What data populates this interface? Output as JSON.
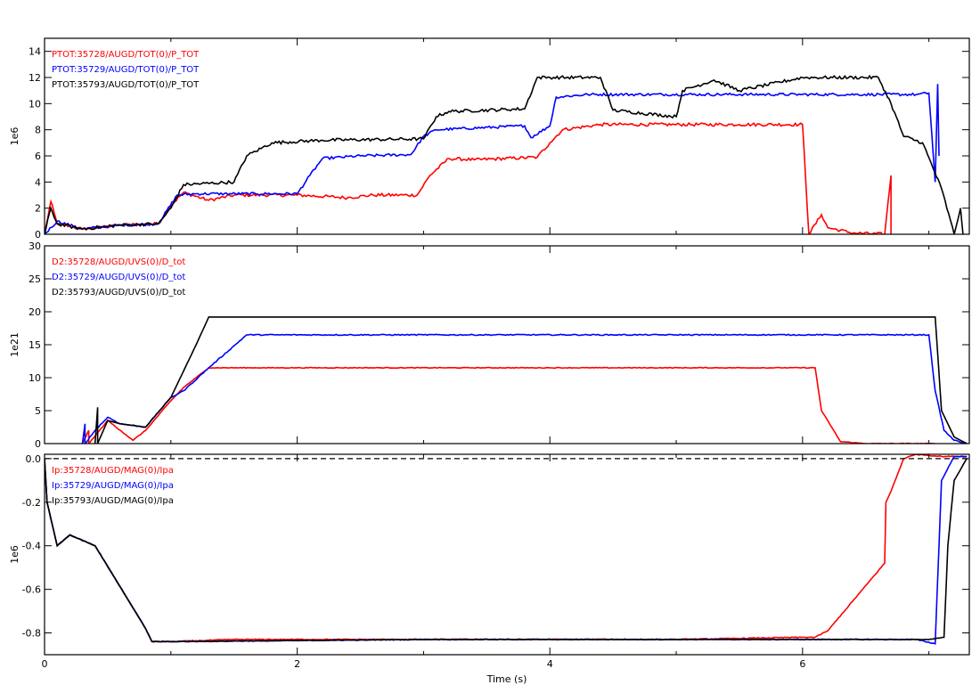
{
  "chart_data": [
    {
      "type": "line",
      "ylabel": "1e6",
      "xlim": [
        0,
        7.32
      ],
      "ylim": [
        0,
        15
      ],
      "yticks": [
        0,
        2,
        4,
        6,
        8,
        10,
        12,
        14
      ],
      "legend_position": "top-left",
      "series": [
        {
          "name": "PTOT:35728/AUGD/TOT(0)/P_TOT",
          "color": "#ff0000",
          "noise": 0.12,
          "points": [
            [
              0.0,
              0.0
            ],
            [
              0.05,
              2.5
            ],
            [
              0.1,
              0.8
            ],
            [
              0.3,
              0.4
            ],
            [
              0.6,
              0.7
            ],
            [
              0.9,
              0.8
            ],
            [
              1.0,
              2.2
            ],
            [
              1.1,
              3.2
            ],
            [
              1.3,
              2.6
            ],
            [
              1.5,
              3.0
            ],
            [
              2.0,
              3.0
            ],
            [
              2.4,
              2.8
            ],
            [
              2.6,
              3.0
            ],
            [
              2.95,
              3.0
            ],
            [
              3.05,
              4.5
            ],
            [
              3.2,
              5.8
            ],
            [
              3.4,
              5.7
            ],
            [
              3.9,
              5.9
            ],
            [
              4.0,
              7.0
            ],
            [
              4.1,
              8.0
            ],
            [
              4.4,
              8.4
            ],
            [
              5.0,
              8.4
            ],
            [
              5.5,
              8.4
            ],
            [
              6.0,
              8.4
            ],
            [
              6.05,
              0.0
            ],
            [
              6.15,
              1.5
            ],
            [
              6.2,
              0.5
            ],
            [
              6.4,
              0.1
            ],
            [
              6.65,
              0.0
            ],
            [
              6.7,
              4.5
            ],
            [
              6.7,
              0.0
            ]
          ]
        },
        {
          "name": "PTOT:35729/AUGD/TOT(0)/P_TOT",
          "color": "#0000ff",
          "noise": 0.1,
          "points": [
            [
              0.0,
              0.0
            ],
            [
              0.1,
              1.0
            ],
            [
              0.3,
              0.4
            ],
            [
              0.6,
              0.7
            ],
            [
              0.9,
              0.8
            ],
            [
              1.05,
              3.0
            ],
            [
              1.2,
              3.1
            ],
            [
              2.0,
              3.1
            ],
            [
              2.1,
              4.5
            ],
            [
              2.2,
              5.8
            ],
            [
              2.5,
              6.0
            ],
            [
              2.9,
              6.1
            ],
            [
              3.0,
              7.5
            ],
            [
              3.1,
              8.0
            ],
            [
              3.8,
              8.3
            ],
            [
              3.85,
              7.4
            ],
            [
              4.0,
              8.3
            ],
            [
              4.05,
              10.5
            ],
            [
              4.3,
              10.7
            ],
            [
              6.0,
              10.7
            ],
            [
              6.9,
              10.7
            ],
            [
              7.0,
              10.8
            ],
            [
              7.05,
              4.0
            ],
            [
              7.07,
              11.5
            ],
            [
              7.08,
              6.0
            ]
          ]
        },
        {
          "name": "PTOT:35793/AUGD/TOT(0)/P_TOT",
          "color": "#000000",
          "noise": 0.12,
          "points": [
            [
              0.0,
              0.0
            ],
            [
              0.05,
              2.0
            ],
            [
              0.1,
              0.8
            ],
            [
              0.3,
              0.4
            ],
            [
              0.6,
              0.7
            ],
            [
              0.9,
              0.8
            ],
            [
              1.0,
              2.0
            ],
            [
              1.1,
              3.8
            ],
            [
              1.5,
              4.0
            ],
            [
              1.6,
              6.0
            ],
            [
              1.8,
              7.0
            ],
            [
              2.2,
              7.2
            ],
            [
              3.0,
              7.3
            ],
            [
              3.1,
              9.0
            ],
            [
              3.2,
              9.4
            ],
            [
              3.8,
              9.6
            ],
            [
              3.9,
              12.0
            ],
            [
              4.0,
              12.0
            ],
            [
              4.4,
              12.0
            ],
            [
              4.5,
              9.5
            ],
            [
              5.0,
              9.0
            ],
            [
              5.05,
              11.0
            ],
            [
              5.3,
              11.8
            ],
            [
              5.5,
              11.0
            ],
            [
              6.0,
              12.0
            ],
            [
              6.6,
              12.0
            ],
            [
              6.7,
              10.0
            ],
            [
              6.8,
              7.5
            ],
            [
              6.95,
              7.0
            ],
            [
              7.1,
              3.5
            ],
            [
              7.2,
              0.0
            ],
            [
              7.25,
              2.0
            ],
            [
              7.27,
              0.0
            ]
          ]
        }
      ]
    },
    {
      "type": "line",
      "ylabel": "1e21",
      "xlim": [
        0,
        7.32
      ],
      "ylim": [
        0,
        30
      ],
      "yticks": [
        0,
        5,
        10,
        15,
        20,
        25,
        30
      ],
      "legend_position": "top-left",
      "series": [
        {
          "name": "D2:35728/AUGD/UVS(0)/D_tot",
          "color": "#ff0000",
          "noise": 0.05,
          "points": [
            [
              0.3,
              0.0
            ],
            [
              0.35,
              2.0
            ],
            [
              0.35,
              0.0
            ],
            [
              0.5,
              3.5
            ],
            [
              0.6,
              2.0
            ],
            [
              0.7,
              0.5
            ],
            [
              0.8,
              2.0
            ],
            [
              1.0,
              6.5
            ],
            [
              1.1,
              8.5
            ],
            [
              1.3,
              11.5
            ],
            [
              2.0,
              11.5
            ],
            [
              4.0,
              11.5
            ],
            [
              6.1,
              11.5
            ],
            [
              6.15,
              5.0
            ],
            [
              6.3,
              0.3
            ],
            [
              6.5,
              0.0
            ],
            [
              7.05,
              0.0
            ]
          ]
        },
        {
          "name": "D2:35729/AUGD/UVS(0)/D_tot",
          "color": "#0000ff",
          "noise": 0.08,
          "points": [
            [
              0.3,
              0.0
            ],
            [
              0.32,
              3.0
            ],
            [
              0.32,
              0.0
            ],
            [
              0.4,
              2.0
            ],
            [
              0.5,
              4.0
            ],
            [
              0.6,
              3.0
            ],
            [
              0.8,
              2.5
            ],
            [
              1.0,
              7.0
            ],
            [
              1.1,
              8.0
            ],
            [
              1.3,
              11.5
            ],
            [
              1.6,
              16.5
            ],
            [
              3.0,
              16.5
            ],
            [
              5.0,
              16.5
            ],
            [
              7.0,
              16.5
            ],
            [
              7.05,
              8.0
            ],
            [
              7.12,
              2.0
            ],
            [
              7.2,
              0.5
            ],
            [
              7.3,
              0.0
            ]
          ]
        },
        {
          "name": "D2:35793/AUGD/UVS(0)/D_tot",
          "color": "#000000",
          "noise": 0.0,
          "points": [
            [
              0.4,
              0.0
            ],
            [
              0.42,
              5.5
            ],
            [
              0.42,
              0.0
            ],
            [
              0.5,
              3.5
            ],
            [
              0.6,
              3.0
            ],
            [
              0.8,
              2.5
            ],
            [
              1.0,
              7.0
            ],
            [
              1.2,
              15.0
            ],
            [
              1.3,
              19.2
            ],
            [
              1.5,
              19.2
            ],
            [
              4.0,
              19.2
            ],
            [
              7.05,
              19.2
            ],
            [
              7.1,
              5.0
            ],
            [
              7.2,
              1.0
            ],
            [
              7.3,
              0.0
            ]
          ]
        }
      ]
    },
    {
      "type": "line",
      "ylabel": "1e6",
      "xlabel": "Time (s)",
      "xlim": [
        0,
        7.32
      ],
      "xticks": [
        0,
        2,
        4,
        6
      ],
      "ylim": [
        -0.9,
        0.02
      ],
      "yticks": [
        -0.8,
        -0.6,
        -0.4,
        -0.2,
        0.0
      ],
      "reference_line": 0.0,
      "legend_position": "top-left",
      "series": [
        {
          "name": "Ip:35728/AUGD/MAG(0)/Ipa",
          "color": "#ff0000",
          "noise": 0.002,
          "points": [
            [
              0.0,
              0.0
            ],
            [
              0.02,
              -0.2
            ],
            [
              0.1,
              -0.4
            ],
            [
              0.2,
              -0.35
            ],
            [
              0.4,
              -0.4
            ],
            [
              0.8,
              -0.78
            ],
            [
              0.85,
              -0.84
            ],
            [
              1.0,
              -0.84
            ],
            [
              1.5,
              -0.83
            ],
            [
              3.0,
              -0.83
            ],
            [
              5.0,
              -0.83
            ],
            [
              6.0,
              -0.82
            ],
            [
              6.1,
              -0.82
            ],
            [
              6.2,
              -0.79
            ],
            [
              6.65,
              -0.48
            ],
            [
              6.66,
              -0.2
            ],
            [
              6.7,
              -0.15
            ],
            [
              6.8,
              0.0
            ],
            [
              6.9,
              0.02
            ],
            [
              7.1,
              0.01
            ],
            [
              7.3,
              0.01
            ]
          ]
        },
        {
          "name": "Ip:35729/AUGD/MAG(0)/Ipa",
          "color": "#0000ff",
          "noise": 0.002,
          "points": [
            [
              0.0,
              0.0
            ],
            [
              0.02,
              -0.2
            ],
            [
              0.1,
              -0.4
            ],
            [
              0.2,
              -0.35
            ],
            [
              0.4,
              -0.4
            ],
            [
              0.8,
              -0.78
            ],
            [
              0.85,
              -0.84
            ],
            [
              1.0,
              -0.84
            ],
            [
              3.0,
              -0.83
            ],
            [
              5.0,
              -0.83
            ],
            [
              6.9,
              -0.83
            ],
            [
              7.05,
              -0.85
            ],
            [
              7.08,
              -0.4
            ],
            [
              7.1,
              -0.1
            ],
            [
              7.2,
              0.01
            ],
            [
              7.3,
              0.01
            ]
          ]
        },
        {
          "name": "Ip:35793/AUGD/MAG(0)/Ipa",
          "color": "#000000",
          "noise": 0.001,
          "points": [
            [
              0.0,
              0.0
            ],
            [
              0.02,
              -0.2
            ],
            [
              0.1,
              -0.4
            ],
            [
              0.2,
              -0.35
            ],
            [
              0.4,
              -0.4
            ],
            [
              0.8,
              -0.78
            ],
            [
              0.85,
              -0.84
            ],
            [
              1.0,
              -0.84
            ],
            [
              3.0,
              -0.83
            ],
            [
              5.0,
              -0.83
            ],
            [
              7.0,
              -0.83
            ],
            [
              7.12,
              -0.82
            ],
            [
              7.15,
              -0.4
            ],
            [
              7.2,
              -0.1
            ],
            [
              7.3,
              0.0
            ]
          ]
        }
      ]
    }
  ]
}
